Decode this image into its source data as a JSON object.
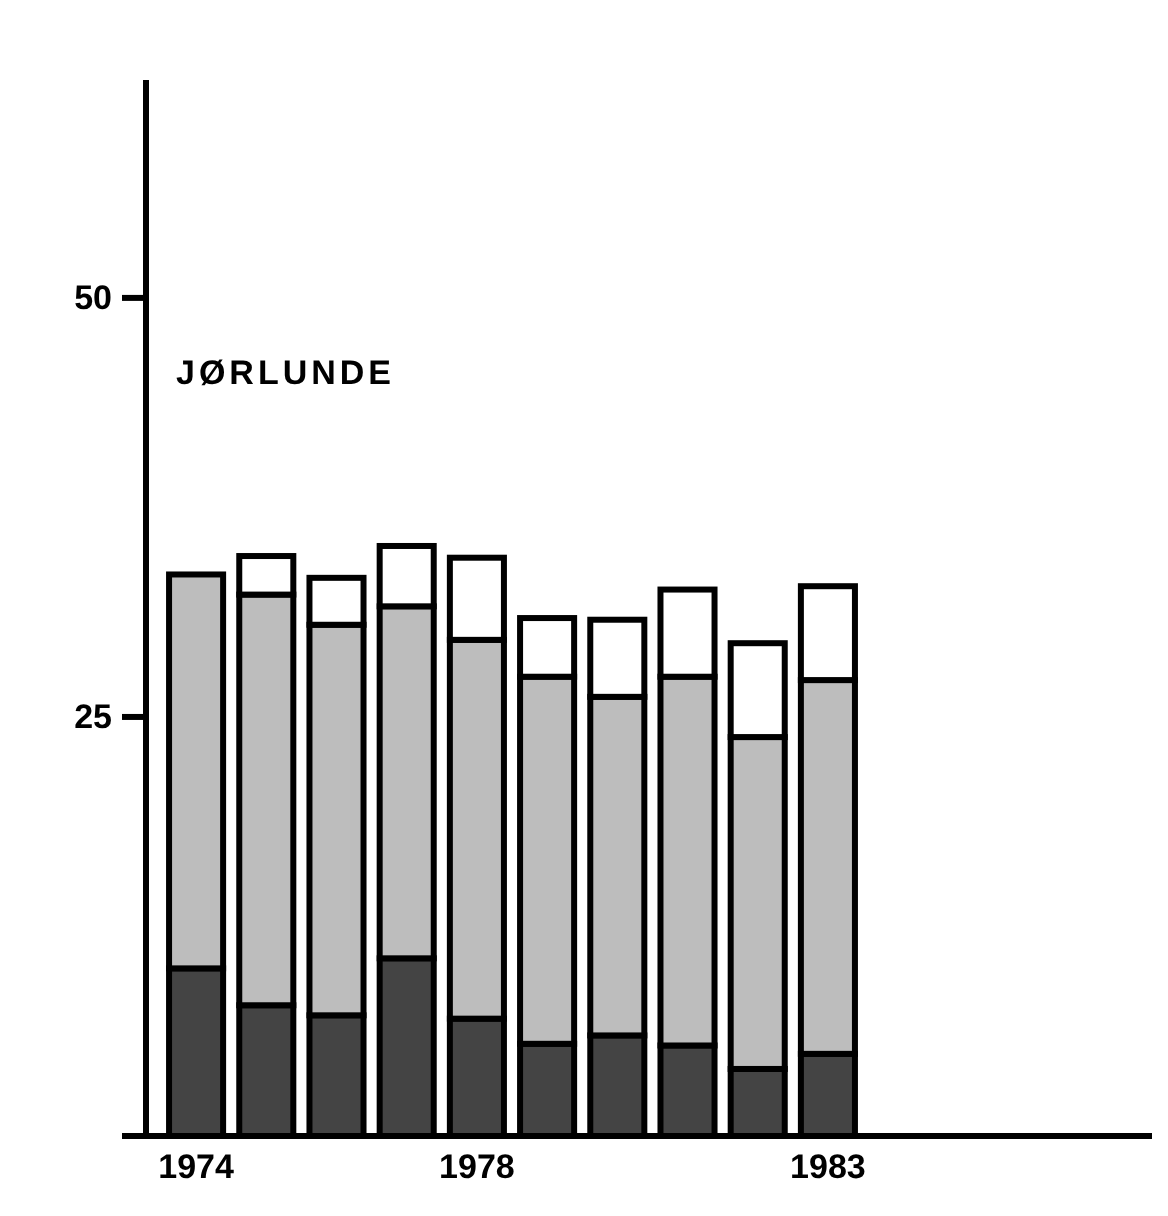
{
  "chart_data": {
    "type": "bar",
    "title": "JØRLUNDE",
    "stacked": true,
    "categories": [
      "1974",
      null,
      null,
      null,
      "1978",
      null,
      null,
      null,
      null,
      "1983"
    ],
    "series": [
      {
        "color": "#444444",
        "values": [
          10.0,
          7.8,
          7.2,
          10.6,
          7.0,
          5.5,
          6.0,
          5.4,
          4.0,
          4.9
        ]
      },
      {
        "color": "#bdbdbd",
        "values": [
          23.5,
          24.5,
          23.3,
          21.0,
          22.6,
          21.9,
          20.2,
          22.0,
          19.8,
          22.3
        ]
      },
      {
        "color": "#ffffff",
        "values": [
          0,
          2.3,
          2.8,
          3.6,
          4.9,
          3.5,
          4.6,
          5.2,
          5.6,
          5.6
        ]
      }
    ],
    "ylim": [
      0,
      63
    ],
    "yticks": [
      {
        "value": 0,
        "label": null
      },
      25,
      50
    ],
    "grid": false
  }
}
